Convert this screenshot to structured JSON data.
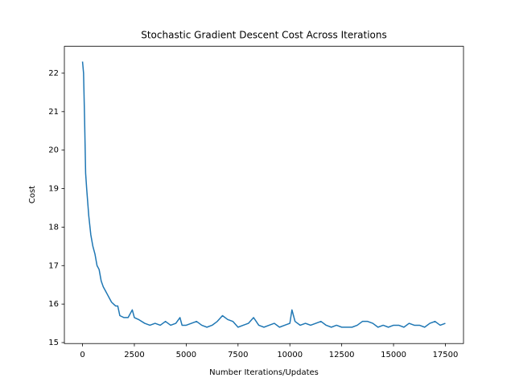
{
  "chart_data": {
    "type": "line",
    "title": "Stochastic Gradient Descent Cost Across Iterations",
    "x_label": "Number Iterations/Updates",
    "y_label": "Cost",
    "x": [
      0,
      50,
      100,
      150,
      200,
      300,
      400,
      500,
      600,
      700,
      800,
      900,
      1000,
      1100,
      1200,
      1300,
      1400,
      1500,
      1600,
      1700,
      1800,
      2000,
      2200,
      2400,
      2500,
      2700,
      3000,
      3250,
      3500,
      3750,
      4000,
      4250,
      4500,
      4700,
      4800,
      5000,
      5250,
      5500,
      5750,
      6000,
      6250,
      6500,
      6750,
      7000,
      7250,
      7500,
      7750,
      8000,
      8250,
      8500,
      8750,
      9000,
      9250,
      9500,
      9750,
      10000,
      10100,
      10250,
      10500,
      10750,
      11000,
      11250,
      11500,
      11750,
      12000,
      12250,
      12500,
      12750,
      13000,
      13250,
      13500,
      13750,
      14000,
      14250,
      14500,
      14750,
      15000,
      15250,
      15500,
      15750,
      16000,
      16250,
      16500,
      16750,
      17000,
      17250,
      17499
    ],
    "series": [
      {
        "name": "Cost",
        "color": "#1f77b4",
        "values": [
          22.3,
          22.0,
          20.8,
          19.4,
          19.0,
          18.3,
          17.8,
          17.5,
          17.3,
          17.0,
          16.9,
          16.6,
          16.45,
          16.35,
          16.25,
          16.15,
          16.05,
          16.0,
          15.95,
          15.95,
          15.7,
          15.65,
          15.65,
          15.85,
          15.65,
          15.6,
          15.5,
          15.45,
          15.5,
          15.45,
          15.55,
          15.45,
          15.5,
          15.65,
          15.45,
          15.45,
          15.5,
          15.55,
          15.45,
          15.4,
          15.45,
          15.55,
          15.7,
          15.6,
          15.55,
          15.4,
          15.45,
          15.5,
          15.65,
          15.45,
          15.4,
          15.45,
          15.5,
          15.4,
          15.45,
          15.5,
          15.85,
          15.55,
          15.45,
          15.5,
          15.45,
          15.5,
          15.55,
          15.45,
          15.4,
          15.45,
          15.4,
          15.4,
          15.4,
          15.45,
          15.55,
          15.55,
          15.5,
          15.4,
          15.45,
          15.4,
          15.45,
          15.45,
          15.4,
          15.5,
          15.45,
          15.45,
          15.4,
          15.5,
          15.55,
          15.45,
          15.5
        ]
      }
    ],
    "xlim": [
      -875,
      18374
    ],
    "ylim": [
      14.975,
      22.697
    ],
    "xticks": [
      0,
      2500,
      5000,
      7500,
      10000,
      12500,
      15000,
      17500
    ],
    "yticks": [
      15,
      16,
      17,
      18,
      19,
      20,
      21,
      22
    ],
    "grid": false
  }
}
